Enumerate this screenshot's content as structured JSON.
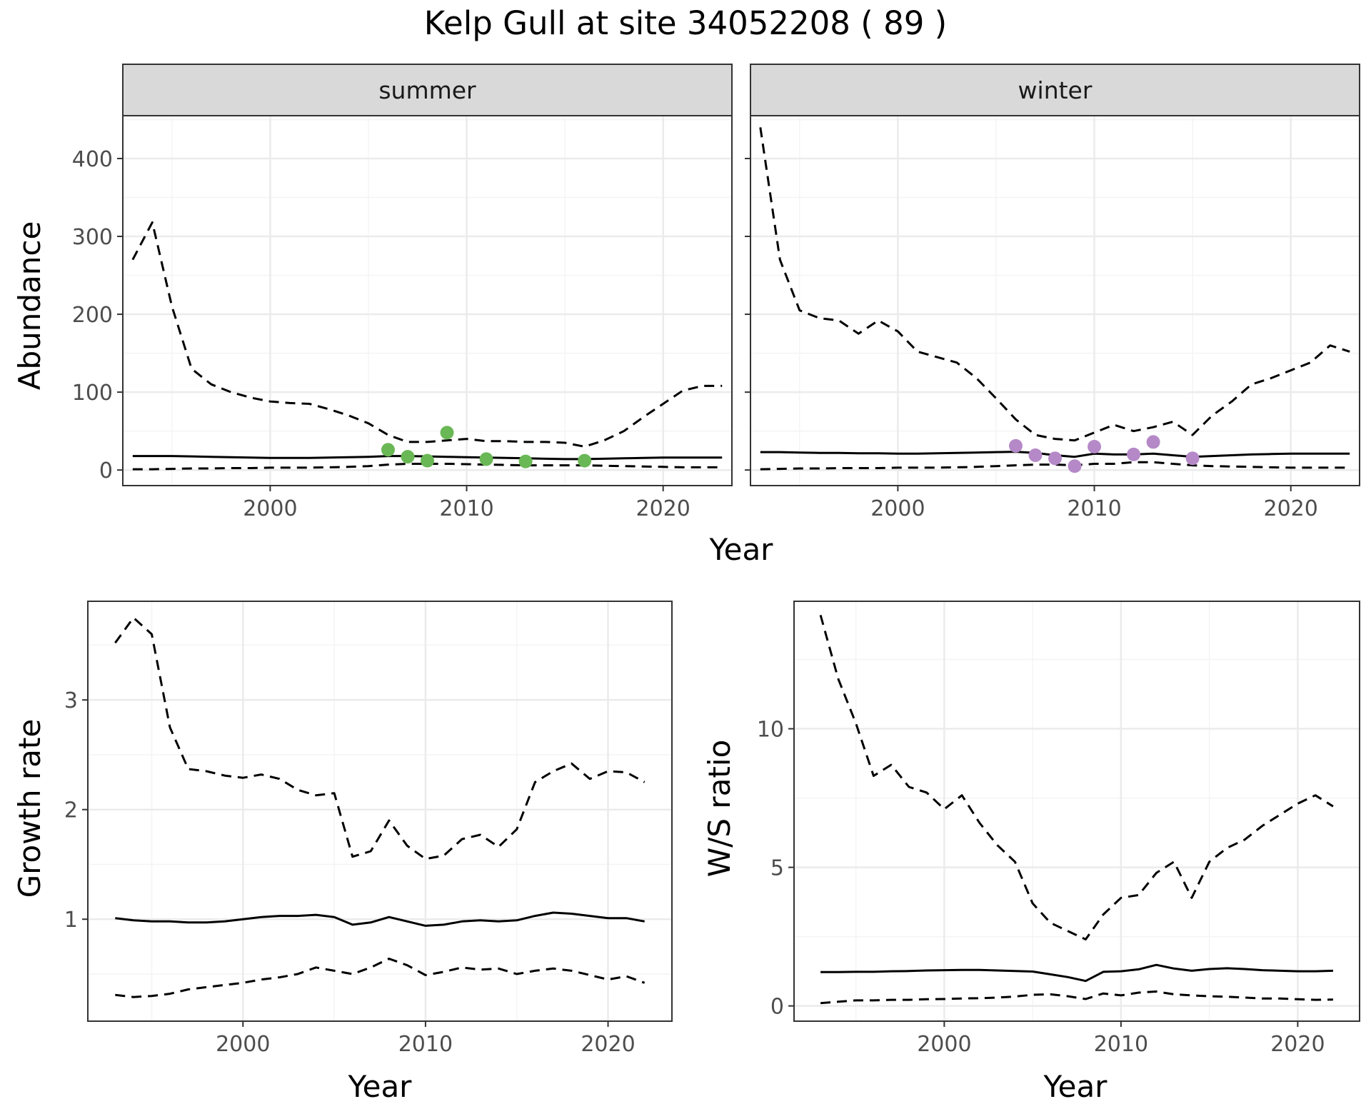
{
  "title": "Kelp Gull at site 34052208 ( 89 )",
  "colors": {
    "summer_points": "#6ab756",
    "winter_points": "#b589c7",
    "lines": "#000000",
    "strip_fill": "#d9d9d9",
    "grid_major": "#ebebeb",
    "grid_minor": "#f4f4f4"
  },
  "chart_data": [
    {
      "type": "line",
      "facet": "summer",
      "xlabel": "Year",
      "ylabel": "Abundance",
      "xlim": [
        1992.5,
        2023.5
      ],
      "ylim": [
        -20,
        455
      ],
      "xticks": [
        2000,
        2010,
        2020
      ],
      "yticks": [
        0,
        100,
        200,
        300,
        400
      ],
      "grid": true,
      "x": [
        1993,
        1994,
        1995,
        1996,
        1997,
        1998,
        1999,
        2000,
        2001,
        2002,
        2003,
        2004,
        2005,
        2006,
        2007,
        2008,
        2009,
        2010,
        2011,
        2012,
        2013,
        2014,
        2015,
        2016,
        2017,
        2018,
        2019,
        2020,
        2021,
        2022,
        2023
      ],
      "series": [
        {
          "role": "fit",
          "style": "solid",
          "values": [
            18,
            18,
            18,
            17.5,
            17,
            16.5,
            16,
            15.5,
            15.5,
            15.5,
            16,
            16.5,
            17,
            18,
            18,
            17.5,
            17,
            16.5,
            16,
            15.5,
            15,
            14.5,
            14,
            14,
            14.5,
            15,
            15.5,
            16,
            16,
            16,
            16
          ]
        },
        {
          "role": "upper",
          "style": "dashed",
          "values": [
            270,
            318,
            210,
            130,
            110,
            100,
            93,
            88,
            86,
            85,
            78,
            70,
            60,
            45,
            36,
            36,
            38,
            40,
            37,
            37,
            36,
            36,
            35,
            30,
            38,
            50,
            68,
            85,
            102,
            108,
            108
          ]
        },
        {
          "role": "lower",
          "style": "dashed",
          "values": [
            1,
            1,
            1.5,
            2,
            2,
            2.5,
            2.5,
            3,
            3,
            3,
            3.5,
            4,
            5,
            7,
            8,
            8,
            8,
            7.5,
            7,
            6.5,
            6,
            6,
            6,
            6,
            5.5,
            5,
            4.5,
            4,
            3.5,
            3.5,
            3.5
          ]
        }
      ],
      "points": [
        {
          "x": 2006,
          "y": 26
        },
        {
          "x": 2007,
          "y": 17
        },
        {
          "x": 2008,
          "y": 12
        },
        {
          "x": 2009,
          "y": 48
        },
        {
          "x": 2011,
          "y": 14
        },
        {
          "x": 2013,
          "y": 11
        },
        {
          "x": 2016,
          "y": 12
        }
      ]
    },
    {
      "type": "line",
      "facet": "winter",
      "xlabel": "Year",
      "ylabel": "",
      "xlim": [
        1992.5,
        2023.5
      ],
      "ylim": [
        -20,
        455
      ],
      "xticks": [
        2000,
        2010,
        2020
      ],
      "yticks": [
        0,
        100,
        200,
        300,
        400
      ],
      "grid": true,
      "x": [
        1993,
        1994,
        1995,
        1996,
        1997,
        1998,
        1999,
        2000,
        2001,
        2002,
        2003,
        2004,
        2005,
        2006,
        2007,
        2008,
        2009,
        2010,
        2011,
        2012,
        2013,
        2014,
        2015,
        2016,
        2017,
        2018,
        2019,
        2020,
        2021,
        2022,
        2023
      ],
      "series": [
        {
          "role": "fit",
          "style": "solid",
          "values": [
            23,
            23,
            22.5,
            22,
            22,
            21.5,
            21.5,
            21,
            21,
            21.5,
            22,
            22.5,
            23,
            23.5,
            22,
            19,
            17,
            21,
            20,
            20,
            21,
            19,
            17,
            18,
            19,
            20,
            20.5,
            21,
            21,
            21,
            21
          ]
        },
        {
          "role": "upper",
          "style": "dashed",
          "values": [
            440,
            270,
            205,
            195,
            192,
            175,
            192,
            178,
            152,
            145,
            138,
            118,
            92,
            65,
            45,
            40,
            38,
            48,
            58,
            50,
            55,
            62,
            45,
            70,
            88,
            110,
            118,
            128,
            138,
            160,
            152
          ]
        },
        {
          "role": "lower",
          "style": "dashed",
          "values": [
            1,
            1.5,
            2,
            2,
            2.5,
            2.5,
            2.5,
            3,
            3,
            3,
            3.5,
            4,
            5,
            6,
            7,
            7,
            6,
            8,
            8,
            10,
            10,
            8,
            6,
            5,
            4.5,
            4,
            3.5,
            3,
            3,
            3,
            3
          ]
        }
      ],
      "points": [
        {
          "x": 2006,
          "y": 31
        },
        {
          "x": 2007,
          "y": 19
        },
        {
          "x": 2008,
          "y": 15
        },
        {
          "x": 2009,
          "y": 5
        },
        {
          "x": 2010,
          "y": 30
        },
        {
          "x": 2012,
          "y": 20
        },
        {
          "x": 2013,
          "y": 36
        },
        {
          "x": 2015,
          "y": 15
        }
      ]
    },
    {
      "type": "line",
      "facet": "",
      "xlabel": "Year",
      "ylabel": "Growth rate",
      "xlim": [
        1991.5,
        2023.5
      ],
      "ylim": [
        0.07,
        3.9
      ],
      "xticks": [
        2000,
        2010,
        2020
      ],
      "yticks": [
        1,
        2,
        3
      ],
      "grid": true,
      "x": [
        1993,
        1994,
        1995,
        1996,
        1997,
        1998,
        1999,
        2000,
        2001,
        2002,
        2003,
        2004,
        2005,
        2006,
        2007,
        2008,
        2009,
        2010,
        2011,
        2012,
        2013,
        2014,
        2015,
        2016,
        2017,
        2018,
        2019,
        2020,
        2021,
        2022
      ],
      "series": [
        {
          "role": "fit",
          "style": "solid",
          "values": [
            1.01,
            0.99,
            0.98,
            0.98,
            0.97,
            0.97,
            0.98,
            1.0,
            1.02,
            1.03,
            1.03,
            1.04,
            1.02,
            0.95,
            0.97,
            1.02,
            0.98,
            0.94,
            0.95,
            0.98,
            0.99,
            0.98,
            0.99,
            1.03,
            1.06,
            1.05,
            1.03,
            1.01,
            1.01,
            0.98
          ]
        },
        {
          "role": "upper",
          "style": "dashed",
          "values": [
            3.52,
            3.75,
            3.6,
            2.75,
            2.37,
            2.35,
            2.31,
            2.29,
            2.32,
            2.28,
            2.18,
            2.13,
            2.15,
            1.57,
            1.62,
            1.9,
            1.67,
            1.55,
            1.58,
            1.73,
            1.77,
            1.66,
            1.82,
            2.25,
            2.35,
            2.42,
            2.28,
            2.35,
            2.34,
            2.25
          ]
        },
        {
          "role": "lower",
          "style": "dashed",
          "values": [
            0.31,
            0.29,
            0.3,
            0.32,
            0.36,
            0.38,
            0.4,
            0.42,
            0.45,
            0.47,
            0.5,
            0.56,
            0.53,
            0.5,
            0.56,
            0.64,
            0.58,
            0.49,
            0.52,
            0.56,
            0.54,
            0.55,
            0.5,
            0.53,
            0.55,
            0.53,
            0.49,
            0.45,
            0.48,
            0.42
          ]
        }
      ]
    },
    {
      "type": "line",
      "facet": "",
      "xlabel": "Year",
      "ylabel": "W/S ratio",
      "xlim": [
        1991.5,
        2023.5
      ],
      "ylim": [
        -0.55,
        14.6
      ],
      "xticks": [
        2000,
        2010,
        2020
      ],
      "yticks": [
        0,
        5,
        10
      ],
      "grid": true,
      "x": [
        1993,
        1994,
        1995,
        1996,
        1997,
        1998,
        1999,
        2000,
        2001,
        2002,
        2003,
        2004,
        2005,
        2006,
        2007,
        2008,
        2009,
        2010,
        2011,
        2012,
        2013,
        2014,
        2015,
        2016,
        2017,
        2018,
        2019,
        2020,
        2021,
        2022
      ],
      "series": [
        {
          "role": "fit",
          "style": "solid",
          "values": [
            1.22,
            1.22,
            1.23,
            1.23,
            1.25,
            1.26,
            1.28,
            1.29,
            1.3,
            1.3,
            1.28,
            1.26,
            1.24,
            1.14,
            1.04,
            0.9,
            1.23,
            1.25,
            1.32,
            1.48,
            1.35,
            1.27,
            1.33,
            1.36,
            1.33,
            1.29,
            1.27,
            1.25,
            1.25,
            1.27
          ]
        },
        {
          "role": "upper",
          "style": "dashed",
          "values": [
            14.1,
            11.8,
            10.2,
            8.3,
            8.7,
            7.9,
            7.7,
            7.1,
            7.6,
            6.6,
            5.8,
            5.2,
            3.7,
            3.0,
            2.7,
            2.4,
            3.3,
            3.9,
            4.0,
            4.8,
            5.2,
            3.9,
            5.2,
            5.7,
            6.0,
            6.5,
            6.9,
            7.3,
            7.6,
            7.2
          ]
        },
        {
          "role": "lower",
          "style": "dashed",
          "values": [
            0.1,
            0.15,
            0.2,
            0.2,
            0.22,
            0.22,
            0.24,
            0.25,
            0.27,
            0.28,
            0.3,
            0.34,
            0.4,
            0.42,
            0.35,
            0.25,
            0.45,
            0.38,
            0.48,
            0.52,
            0.42,
            0.38,
            0.35,
            0.33,
            0.3,
            0.27,
            0.27,
            0.24,
            0.22,
            0.23
          ]
        }
      ]
    }
  ]
}
